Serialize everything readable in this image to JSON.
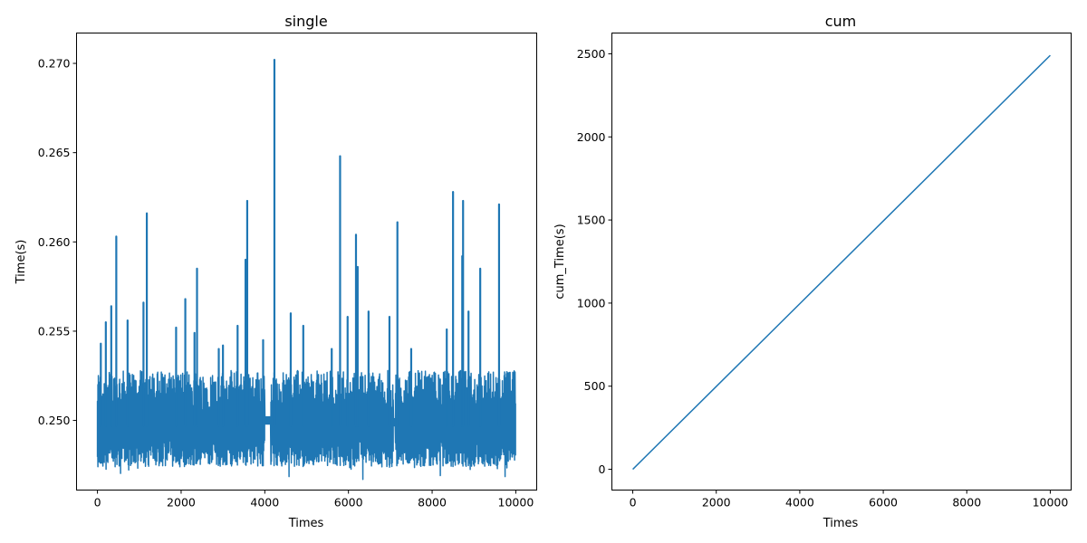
{
  "chart_data": [
    {
      "type": "line",
      "title": "single",
      "xlabel": "Times",
      "ylabel": "Time(s)",
      "xlim": [
        -500,
        10500
      ],
      "ylim": [
        0.2461,
        0.2717
      ],
      "xticks": [
        0,
        2000,
        4000,
        6000,
        8000,
        10000
      ],
      "xtick_labels": [
        "0",
        "2000",
        "4000",
        "6000",
        "8000",
        "10000"
      ],
      "yticks": [
        0.25,
        0.255,
        0.26,
        0.265,
        0.27
      ],
      "ytick_labels": [
        "0.250",
        "0.255",
        "0.260",
        "0.265",
        "0.270"
      ],
      "grid": false,
      "color": "#1f77b4",
      "series": [
        {
          "x_range": [
            0,
            10000
          ],
          "n_points": 10000,
          "baseline": 0.2497,
          "typical_band": [
            0.2474,
            0.2528
          ],
          "min": 0.2465,
          "spikes": [
            {
              "x": 80,
              "y": 0.2543
            },
            {
              "x": 200,
              "y": 0.2555
            },
            {
              "x": 330,
              "y": 0.2564
            },
            {
              "x": 450,
              "y": 0.2603
            },
            {
              "x": 720,
              "y": 0.2556
            },
            {
              "x": 1100,
              "y": 0.2566
            },
            {
              "x": 1180,
              "y": 0.2616
            },
            {
              "x": 1880,
              "y": 0.2552
            },
            {
              "x": 2100,
              "y": 0.2568
            },
            {
              "x": 2320,
              "y": 0.2549
            },
            {
              "x": 2380,
              "y": 0.2585
            },
            {
              "x": 2900,
              "y": 0.254
            },
            {
              "x": 3000,
              "y": 0.2542
            },
            {
              "x": 3350,
              "y": 0.2553
            },
            {
              "x": 3540,
              "y": 0.259
            },
            {
              "x": 3580,
              "y": 0.2623
            },
            {
              "x": 3960,
              "y": 0.2545
            },
            {
              "x": 4230,
              "y": 0.2702
            },
            {
              "x": 4620,
              "y": 0.256
            },
            {
              "x": 4920,
              "y": 0.2553
            },
            {
              "x": 5600,
              "y": 0.254
            },
            {
              "x": 5800,
              "y": 0.2648
            },
            {
              "x": 5980,
              "y": 0.2558
            },
            {
              "x": 6180,
              "y": 0.2604
            },
            {
              "x": 6220,
              "y": 0.2586
            },
            {
              "x": 6480,
              "y": 0.2561
            },
            {
              "x": 6980,
              "y": 0.2558
            },
            {
              "x": 7170,
              "y": 0.2611
            },
            {
              "x": 7500,
              "y": 0.254
            },
            {
              "x": 8350,
              "y": 0.2551
            },
            {
              "x": 8500,
              "y": 0.2628
            },
            {
              "x": 8720,
              "y": 0.2592
            },
            {
              "x": 8740,
              "y": 0.2623
            },
            {
              "x": 8870,
              "y": 0.2561
            },
            {
              "x": 9150,
              "y": 0.2585
            },
            {
              "x": 9600,
              "y": 0.2621
            }
          ],
          "flat_segments": [
            {
              "x": [
                4000,
                4140
              ],
              "y": 0.25
            },
            {
              "x": [
                7080,
                7120
              ],
              "y": 0.2499
            }
          ]
        }
      ]
    },
    {
      "type": "line",
      "title": "cum",
      "xlabel": "Times",
      "ylabel": "cum_Time(s)",
      "xlim": [
        -500,
        10500
      ],
      "ylim": [
        -125,
        2625
      ],
      "xticks": [
        0,
        2000,
        4000,
        6000,
        8000,
        10000
      ],
      "xtick_labels": [
        "0",
        "2000",
        "4000",
        "6000",
        "8000",
        "10000"
      ],
      "yticks": [
        0,
        500,
        1000,
        1500,
        2000,
        2500
      ],
      "ytick_labels": [
        "0",
        "500",
        "1000",
        "1500",
        "2000",
        "2500"
      ],
      "grid": false,
      "color": "#1f77b4",
      "series": [
        {
          "x": [
            0,
            2000,
            4000,
            6000,
            8000,
            10000
          ],
          "y": [
            0,
            498,
            996,
            1494,
            1993,
            2491
          ]
        }
      ]
    }
  ]
}
